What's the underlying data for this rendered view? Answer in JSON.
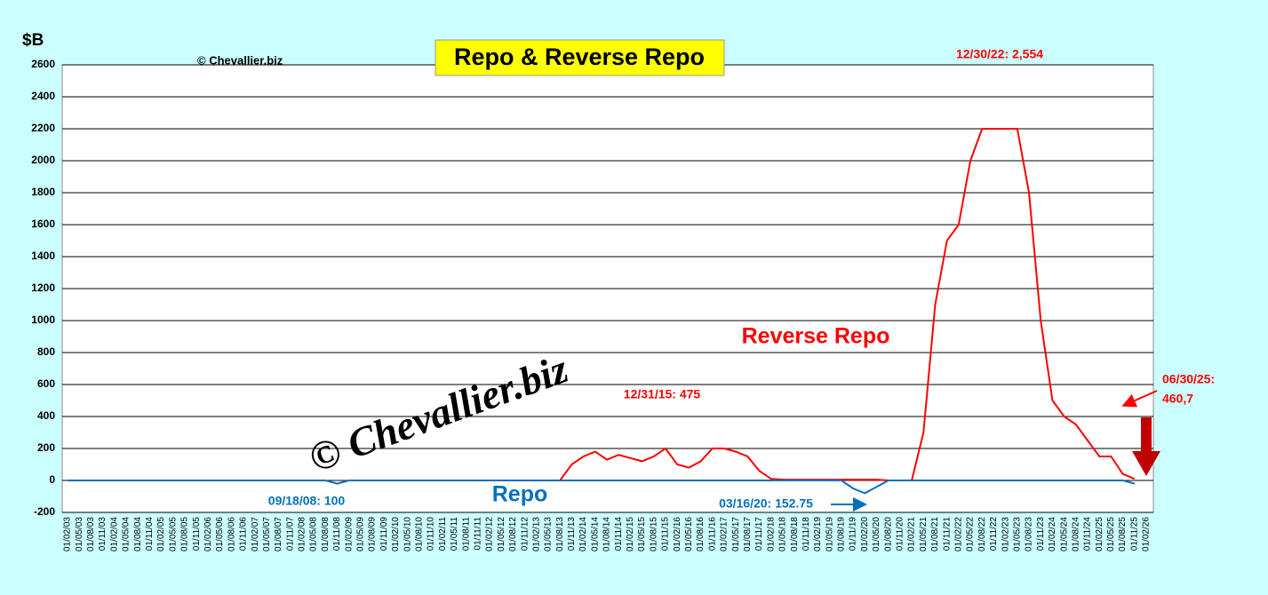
{
  "chart_data": {
    "type": "line",
    "title": "Repo & Reverse Repo",
    "y_label": "$B",
    "watermark": "© Chevallier.biz",
    "watermark_large": "© Chevallier.biz",
    "categories": [
      "01/02/03",
      "01/05/03",
      "01/08/03",
      "01/11/03",
      "01/02/04",
      "01/05/04",
      "01/08/04",
      "01/11/04",
      "01/02/05",
      "01/05/05",
      "01/08/05",
      "01/11/05",
      "01/02/06",
      "01/05/06",
      "01/08/06",
      "01/11/06",
      "01/02/07",
      "01/05/07",
      "01/08/07",
      "01/11/07",
      "01/02/08",
      "01/05/08",
      "01/08/08",
      "01/11/08",
      "01/02/09",
      "01/05/09",
      "01/08/09",
      "01/11/09",
      "01/02/10",
      "01/05/10",
      "01/08/10",
      "01/11/10",
      "01/02/11",
      "01/05/11",
      "01/08/11",
      "01/11/11",
      "01/02/12",
      "01/05/12",
      "01/08/12",
      "01/11/12",
      "01/02/13",
      "01/05/13",
      "01/08/13",
      "01/11/13",
      "01/02/14",
      "01/05/14",
      "01/08/14",
      "01/11/14",
      "01/02/15",
      "01/05/15",
      "01/08/15",
      "01/11/15",
      "01/02/16",
      "01/05/16",
      "01/08/16",
      "01/11/16",
      "01/02/17",
      "01/05/17",
      "01/08/17",
      "01/11/17",
      "01/02/18",
      "01/05/18",
      "01/08/18",
      "01/11/18",
      "01/02/19",
      "01/05/19",
      "01/08/19",
      "01/11/19",
      "01/02/20",
      "01/05/20",
      "01/08/20",
      "01/11/20",
      "01/02/21",
      "01/05/21",
      "01/08/21",
      "01/11/21",
      "01/02/22",
      "01/05/22",
      "01/08/22",
      "01/11/22",
      "01/02/23",
      "01/05/23",
      "01/08/23",
      "01/11/23",
      "01/02/24",
      "01/05/24",
      "01/08/24",
      "01/11/24",
      "01/02/25",
      "01/05/25",
      "01/08/25",
      "01/11/25",
      "01/02/26"
    ],
    "series": [
      {
        "name": "Reverse Repo",
        "color": "#ff0000",
        "values": [
          null,
          null,
          null,
          null,
          null,
          null,
          null,
          null,
          null,
          null,
          null,
          null,
          null,
          null,
          null,
          null,
          null,
          null,
          null,
          null,
          null,
          null,
          null,
          null,
          null,
          null,
          null,
          null,
          null,
          null,
          null,
          null,
          null,
          null,
          null,
          null,
          null,
          null,
          null,
          null,
          null,
          null,
          0,
          100,
          150,
          180,
          130,
          160,
          140,
          120,
          150,
          200,
          100,
          80,
          120,
          200,
          200,
          180,
          150,
          60,
          10,
          5,
          5,
          5,
          5,
          5,
          5,
          5,
          5,
          5,
          0,
          0,
          0,
          300,
          1100,
          1500,
          1600,
          2000,
          2200,
          2200,
          2200,
          2200,
          1800,
          1000,
          500,
          400,
          350,
          250,
          150,
          150,
          40,
          10,
          null
        ]
      },
      {
        "name": "Repo",
        "color": "#0070c0",
        "values": [
          0,
          0,
          0,
          0,
          0,
          0,
          0,
          0,
          0,
          0,
          0,
          0,
          0,
          0,
          0,
          0,
          0,
          0,
          0,
          0,
          0,
          0,
          0,
          -20,
          0,
          0,
          0,
          0,
          0,
          0,
          0,
          0,
          0,
          0,
          0,
          0,
          0,
          0,
          0,
          0,
          0,
          0,
          0,
          0,
          0,
          0,
          0,
          0,
          0,
          0,
          0,
          0,
          0,
          0,
          0,
          0,
          0,
          0,
          0,
          0,
          0,
          0,
          0,
          0,
          0,
          0,
          0,
          -50,
          -80,
          -40,
          0,
          0,
          0,
          0,
          0,
          0,
          0,
          0,
          0,
          0,
          0,
          0,
          0,
          0,
          0,
          0,
          0,
          0,
          0,
          0,
          0,
          -20,
          null
        ]
      }
    ],
    "ylim": [
      -200,
      2600
    ],
    "yticks": [
      -200,
      0,
      200,
      400,
      600,
      800,
      1000,
      1200,
      1400,
      1600,
      1800,
      2000,
      2200,
      2400,
      2600
    ],
    "grid": true,
    "annotations": [
      {
        "text": "12/30/22: 2,554",
        "color": "#ff0000"
      },
      {
        "text": "12/31/15: 475",
        "color": "#ff0000"
      },
      {
        "text": "06/30/25:",
        "color": "#ff0000"
      },
      {
        "text": "460,7",
        "color": "#ff0000"
      },
      {
        "text": "09/18/08: 100",
        "color": "#0070c0"
      },
      {
        "text": "03/16/20: 152.75",
        "color": "#0070c0"
      }
    ]
  }
}
